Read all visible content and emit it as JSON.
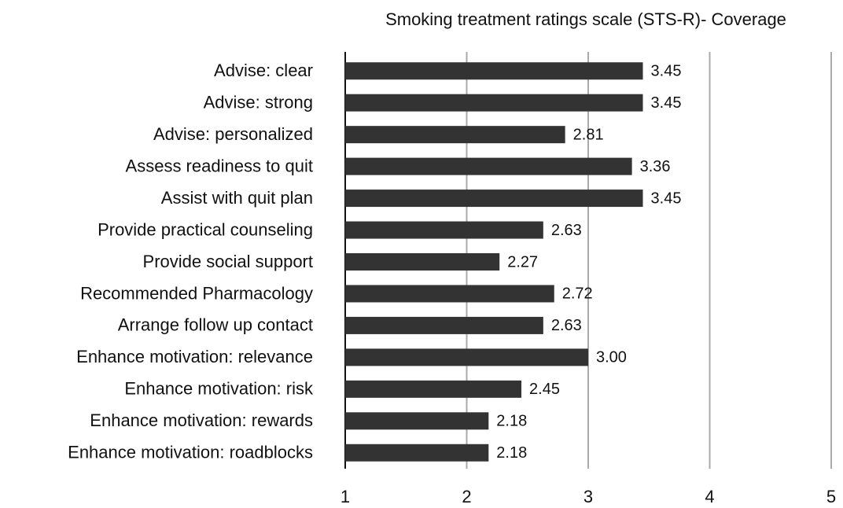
{
  "chart_data": {
    "type": "bar",
    "orientation": "horizontal",
    "title": "Smoking treatment ratings scale (STS-R)- Coverage",
    "categories": [
      "Advise: clear",
      "Advise: strong",
      "Advise: personalized",
      "Assess readiness to quit",
      "Assist with quit plan",
      "Provide practical counseling",
      "Provide social support",
      "Recommended Pharmacology",
      "Arrange follow up contact",
      "Enhance motivation: relevance",
      "Enhance motivation: risk",
      "Enhance motivation: rewards",
      "Enhance motivation: roadblocks"
    ],
    "values": [
      3.45,
      3.45,
      2.81,
      3.36,
      3.45,
      2.63,
      2.27,
      2.72,
      2.63,
      3.0,
      2.45,
      2.18,
      2.18
    ],
    "value_labels": [
      "3.45",
      "3.45",
      "2.81",
      "3.36",
      "3.45",
      "2.63",
      "2.27",
      "2.72",
      "2.63",
      "3.00",
      "2.45",
      "2.18",
      "2.18"
    ],
    "color": "#333333",
    "xlim": [
      1,
      5
    ],
    "xticks": [
      1,
      2,
      3,
      4,
      5
    ],
    "grid": true
  }
}
